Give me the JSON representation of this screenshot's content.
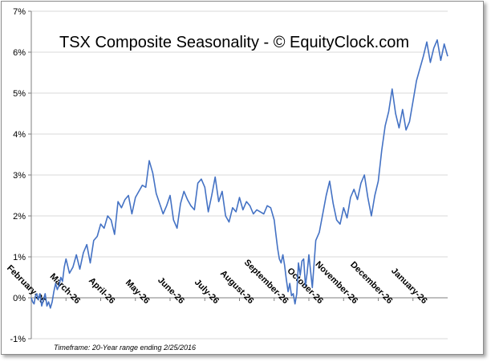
{
  "chart_data": {
    "type": "line",
    "title": "TSX Composite Seasonality - © EquityClock.com",
    "footnote": "Timeframe: 20-Year range ending 2/25/2016",
    "xlabel": "",
    "ylabel": "",
    "ylim": [
      -1,
      7
    ],
    "y_ticks": [
      "-1%",
      "0%",
      "1%",
      "2%",
      "3%",
      "4%",
      "5%",
      "6%",
      "7%"
    ],
    "x_ticks": [
      "February-26",
      "March-26",
      "April-26",
      "May-26",
      "June-26",
      "July-26",
      "August-26",
      "September-26",
      "October-26",
      "November-26",
      "December-26",
      "January-26"
    ],
    "grid": "horizontal",
    "colors": {
      "line": "#4472c4",
      "grid": "#d9d9d9",
      "axis": "#7f7f7f"
    },
    "series": [
      {
        "x": [
          0,
          0.04,
          0.08,
          0.12,
          0.16,
          0.2,
          0.25,
          0.3,
          0.35,
          0.4,
          0.45,
          0.5,
          0.55,
          0.6,
          0.65,
          0.7,
          0.75,
          0.8,
          0.85,
          0.9,
          0.95,
          1.0,
          1.1,
          1.2,
          1.3,
          1.4,
          1.5,
          1.6,
          1.7,
          1.8,
          1.9,
          2.0,
          2.1,
          2.2,
          2.3,
          2.4,
          2.5,
          2.6,
          2.7,
          2.8,
          2.9,
          3.0,
          3.1,
          3.2,
          3.3,
          3.4,
          3.5,
          3.6,
          3.7,
          3.8,
          3.9,
          4.0,
          4.1,
          4.2,
          4.3,
          4.4,
          4.5,
          4.6,
          4.7,
          4.8,
          4.9,
          5.0,
          5.1,
          5.2,
          5.3,
          5.4,
          5.5,
          5.6,
          5.7,
          5.8,
          5.9,
          6.0,
          6.1,
          6.2,
          6.3,
          6.4,
          6.5,
          6.6,
          6.7,
          6.8,
          6.9,
          7.0,
          7.05,
          7.1,
          7.15,
          7.2,
          7.25,
          7.3,
          7.35,
          7.4,
          7.45,
          7.5,
          7.55,
          7.6,
          7.65,
          7.7,
          7.75,
          7.8,
          7.85,
          7.9,
          7.95,
          8.0,
          8.1,
          8.2,
          8.3,
          8.4,
          8.5,
          8.6,
          8.7,
          8.8,
          8.9,
          9.0,
          9.1,
          9.2,
          9.3,
          9.4,
          9.5,
          9.6,
          9.7,
          9.8,
          9.9,
          10.0,
          10.1,
          10.2,
          10.3,
          10.4,
          10.5,
          10.6,
          10.7,
          10.8,
          10.9,
          11.0,
          11.1,
          11.2,
          11.3,
          11.4,
          11.5,
          11.6,
          11.7,
          11.8,
          11.9,
          12.0
        ],
        "y": [
          0.0,
          -0.1,
          -0.15,
          0.05,
          0.1,
          -0.05,
          0.1,
          -0.2,
          -0.05,
          0.1,
          -0.2,
          -0.1,
          -0.25,
          -0.1,
          0.15,
          0.35,
          0.2,
          0.3,
          0.5,
          0.4,
          0.75,
          0.95,
          0.6,
          0.75,
          1.05,
          0.7,
          1.1,
          1.3,
          0.85,
          1.4,
          1.5,
          1.8,
          1.7,
          2.0,
          1.9,
          1.55,
          2.35,
          2.2,
          2.4,
          2.5,
          2.05,
          2.45,
          2.6,
          2.75,
          2.7,
          3.35,
          3.05,
          2.55,
          2.3,
          2.05,
          2.25,
          2.5,
          1.9,
          1.7,
          2.3,
          2.6,
          2.4,
          2.25,
          2.15,
          2.8,
          2.9,
          2.7,
          2.1,
          2.5,
          2.95,
          2.35,
          2.6,
          2.0,
          1.85,
          2.2,
          2.1,
          2.45,
          2.15,
          2.35,
          2.25,
          2.05,
          2.15,
          2.1,
          2.05,
          2.25,
          2.2,
          1.9,
          1.55,
          1.2,
          0.95,
          0.85,
          1.05,
          0.8,
          0.45,
          0.15,
          0.35,
          0.05,
          0.1,
          -0.15,
          0.1,
          0.85,
          0.55,
          0.9,
          0.95,
          0.3,
          0.6,
          1.05,
          0.25,
          1.4,
          1.6,
          2.05,
          2.5,
          2.85,
          2.3,
          1.9,
          1.8,
          2.2,
          1.95,
          2.45,
          2.65,
          2.4,
          2.8,
          3.0,
          2.45,
          2.0,
          2.5,
          2.85,
          3.6,
          4.2,
          4.55,
          5.1,
          4.5,
          4.15,
          4.6,
          4.1,
          4.3,
          4.8,
          5.3,
          5.6,
          5.9,
          6.25,
          5.75,
          6.1,
          6.3,
          5.8,
          6.2,
          5.9
        ]
      }
    ]
  }
}
